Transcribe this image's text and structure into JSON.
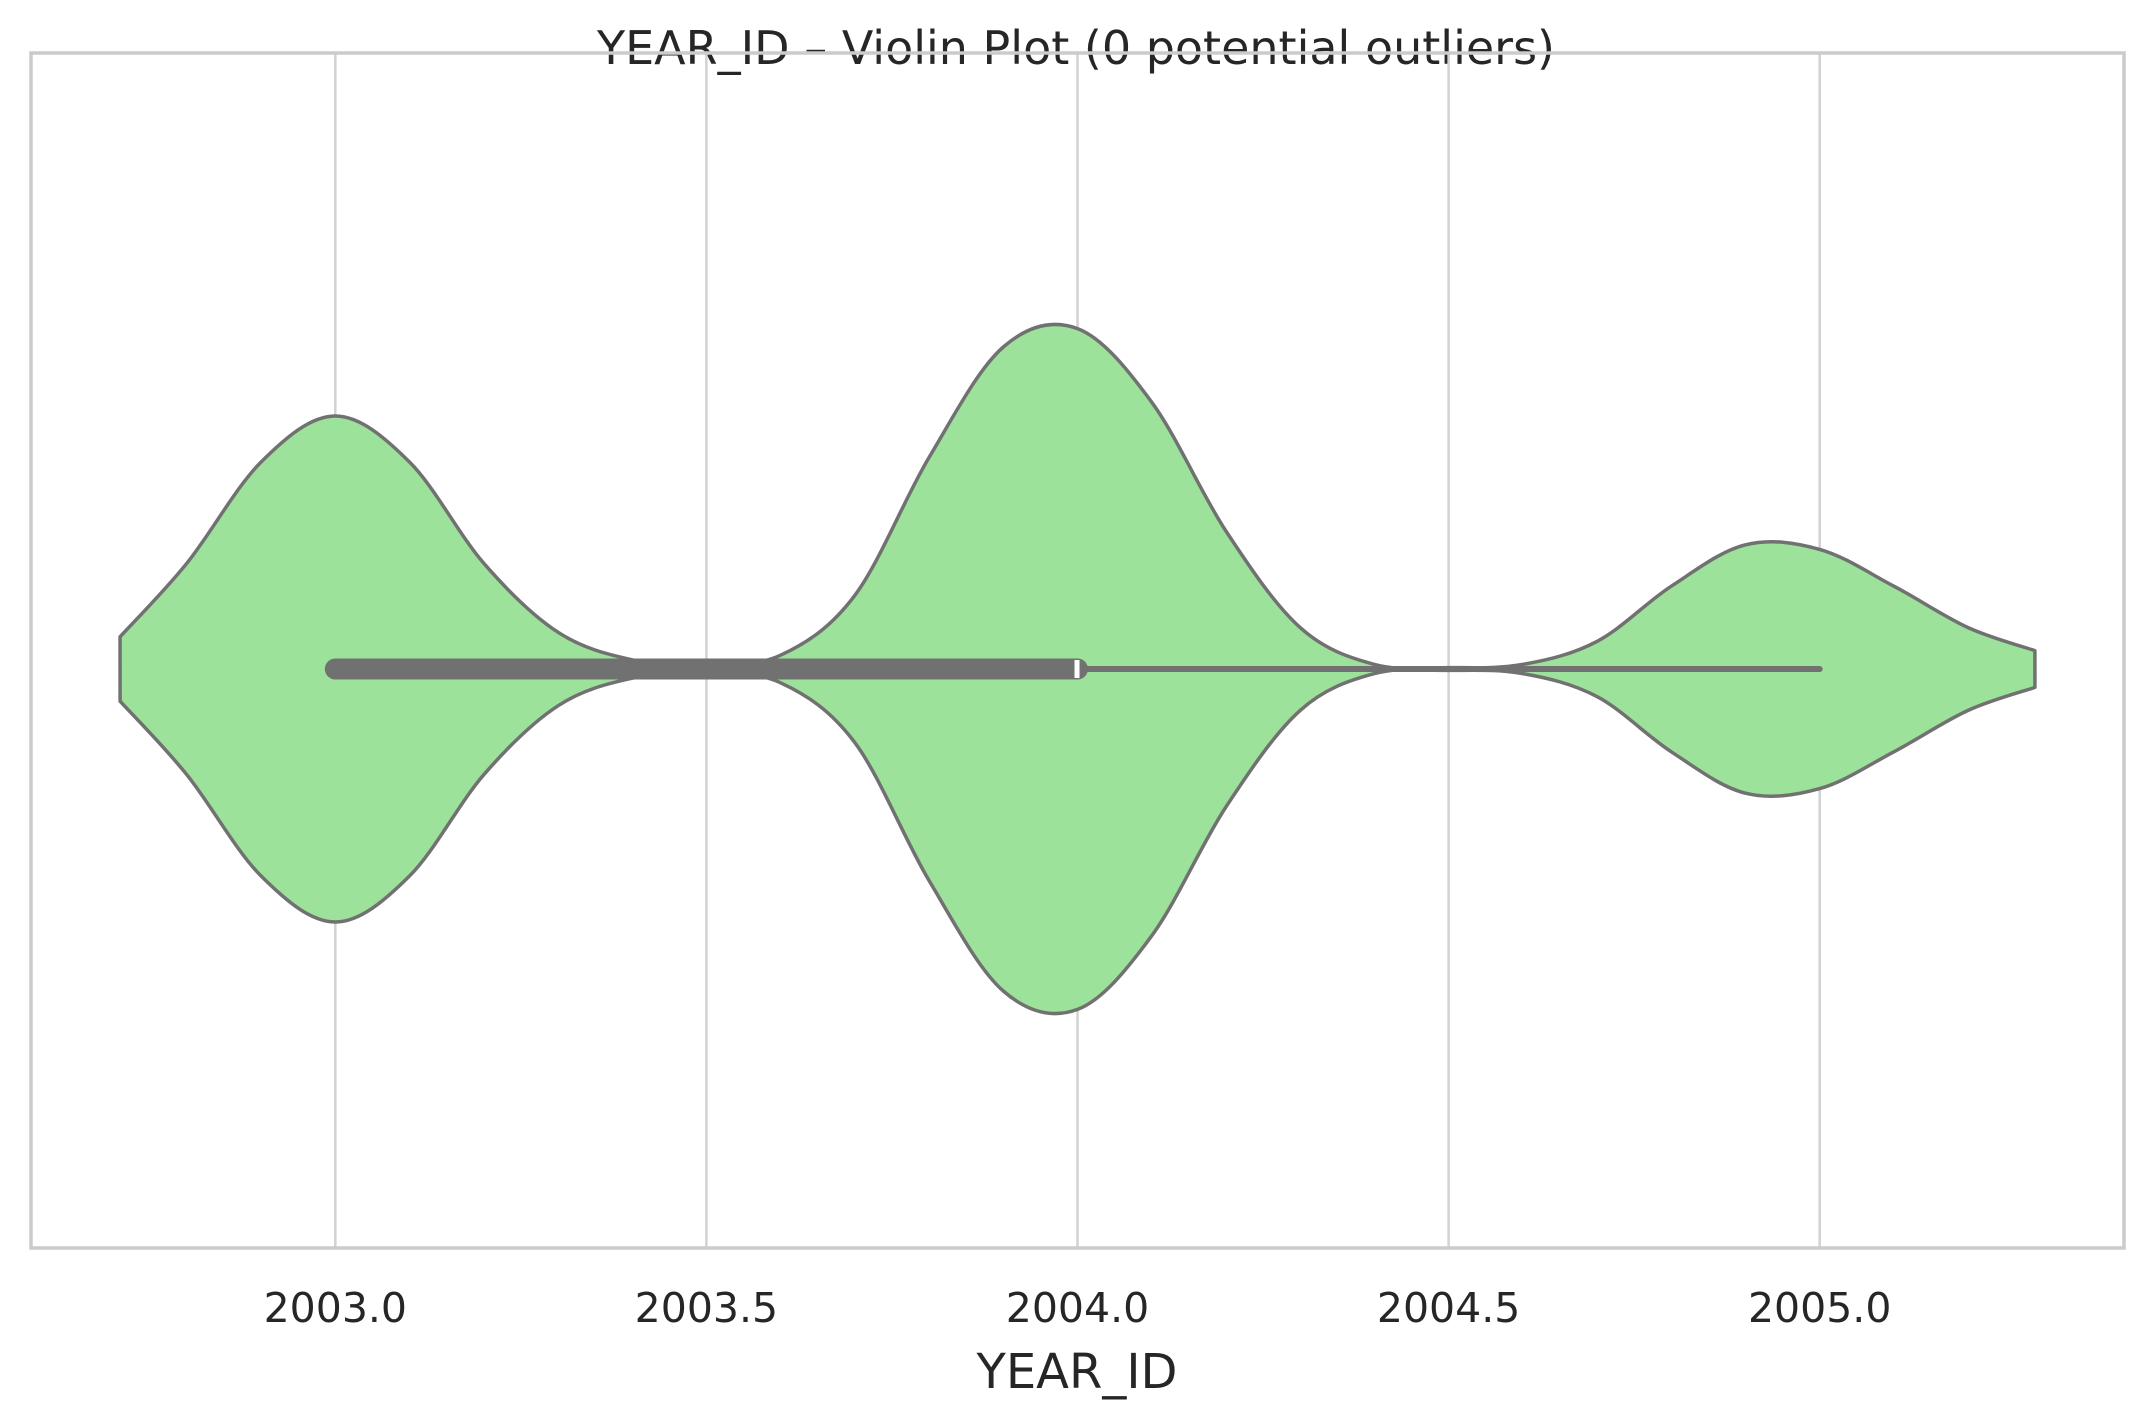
{
  "chart_data": {
    "type": "violin",
    "title": "YEAR_ID – Violin Plot (0 potential outliers)",
    "xlabel": "YEAR_ID",
    "ylabel": "",
    "orientation": "horizontal",
    "xlim": [
      2002.59,
      2005.41
    ],
    "xticks": [
      2003.0,
      2003.5,
      2004.0,
      2004.5,
      2005.0
    ],
    "xtick_labels": [
      "2003.0",
      "2003.5",
      "2004.0",
      "2004.5",
      "2005.0"
    ],
    "grid": "vertical",
    "outliers": 0,
    "box": {
      "whisker_low": 2003.0,
      "q1": 2003.0,
      "median": 2004.0,
      "q3": 2004.0,
      "whisker_high": 2005.0
    },
    "density": {
      "x": [
        2002.71,
        2002.8,
        2002.9,
        2003.0,
        2003.1,
        2003.2,
        2003.3,
        2003.4,
        2003.5,
        2003.6,
        2003.7,
        2003.8,
        2003.9,
        2004.0,
        2004.1,
        2004.2,
        2004.3,
        2004.4,
        2004.5,
        2004.6,
        2004.7,
        2004.8,
        2004.9,
        2005.0,
        2005.1,
        2005.2,
        2005.29
      ],
      "width": [
        0.07,
        0.23,
        0.45,
        0.55,
        0.45,
        0.23,
        0.08,
        0.02,
        0.01,
        0.03,
        0.16,
        0.46,
        0.7,
        0.74,
        0.58,
        0.3,
        0.09,
        0.01,
        0.003,
        0.01,
        0.06,
        0.18,
        0.27,
        0.26,
        0.18,
        0.09,
        0.04
      ]
    },
    "colors": {
      "fill": "#9de29b",
      "edge": "#717171",
      "grid": "#d2d2d2",
      "frame": "#cbcbcb"
    }
  }
}
